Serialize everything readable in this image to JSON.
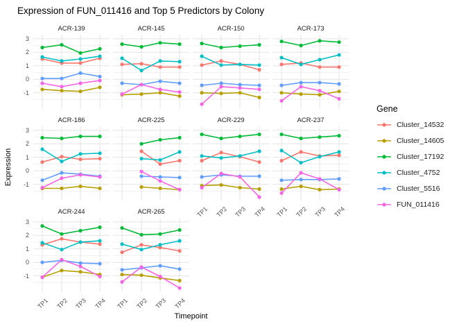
{
  "title": "Expression of FUN_011416 and Top 5 Predictors by Colony",
  "axes": {
    "x_label": "Timepoint",
    "y_label": "Expression",
    "x_tick_labels": [
      "TP1",
      "TP2",
      "TP3",
      "TP4"
    ],
    "y_tick_labels": [
      "3",
      "2",
      "1",
      "0",
      "-1"
    ],
    "y_tick_values": [
      3,
      2,
      1,
      0,
      -1
    ]
  },
  "legend": {
    "title": "Gene",
    "entries": [
      {
        "label": "Cluster_14532",
        "color": "#F8766D"
      },
      {
        "label": "Cluster_14605",
        "color": "#B79F00"
      },
      {
        "label": "Cluster_17192",
        "color": "#00BA38"
      },
      {
        "label": "Cluster_4752",
        "color": "#00BFC4"
      },
      {
        "label": "Cluster_5516",
        "color": "#619CFF"
      },
      {
        "label": "FUN_011416",
        "color": "#F564E3"
      }
    ]
  },
  "chart_data": {
    "type": "line",
    "title": "Expression of FUN_011416 and Top 5 Predictors by Colony",
    "xlabel": "Timepoint",
    "ylabel": "Expression",
    "facet_by": "Colony",
    "x": [
      "TP1",
      "TP2",
      "TP3",
      "TP4"
    ],
    "ylim": [
      -2.2,
      3.3
    ],
    "y_major_ticks": [
      -1,
      0,
      1,
      2,
      3
    ],
    "y_minor_ticks": [
      -1.5,
      -0.5,
      0.5,
      1.5,
      2.5
    ],
    "grid": true,
    "legend_position": "right",
    "legend_title": "Gene",
    "series_colors": {
      "Cluster_14532": "#F8766D",
      "Cluster_14605": "#B79F00",
      "Cluster_17192": "#00BA38",
      "Cluster_4752": "#00BFC4",
      "Cluster_5516": "#619CFF",
      "FUN_011416": "#F564E3"
    },
    "facets": [
      {
        "name": "ACR-139",
        "series": [
          {
            "name": "Cluster_14532",
            "values": [
              1.5,
              1.2,
              1.2,
              1.55
            ]
          },
          {
            "name": "Cluster_14605",
            "values": [
              -0.75,
              -0.85,
              -0.9,
              -0.6
            ]
          },
          {
            "name": "Cluster_17192",
            "values": [
              2.35,
              2.55,
              1.95,
              2.25
            ]
          },
          {
            "name": "Cluster_4752",
            "values": [
              1.65,
              1.35,
              1.5,
              1.7
            ]
          },
          {
            "name": "Cluster_5516",
            "values": [
              0.05,
              0.05,
              0.45,
              0.2
            ]
          },
          {
            "name": "FUN_011416",
            "values": [
              -0.3,
              -0.55,
              -0.3,
              -0.1
            ]
          }
        ]
      },
      {
        "name": "ACR-145",
        "series": [
          {
            "name": "Cluster_14532",
            "values": [
              1.1,
              1.15,
              0.9,
              0.9
            ]
          },
          {
            "name": "Cluster_14605",
            "values": [
              -1.15,
              -1.1,
              -1.0,
              -1.25
            ]
          },
          {
            "name": "Cluster_17192",
            "values": [
              2.6,
              2.4,
              2.7,
              2.6
            ]
          },
          {
            "name": "Cluster_4752",
            "values": [
              1.55,
              0.65,
              1.35,
              1.3
            ]
          },
          {
            "name": "Cluster_5516",
            "values": [
              -0.3,
              -0.4,
              -0.15,
              -0.3
            ]
          },
          {
            "name": "FUN_011416",
            "values": [
              -1.1,
              -0.4,
              -0.75,
              -0.95
            ]
          }
        ]
      },
      {
        "name": "ACR-150",
        "series": [
          {
            "name": "Cluster_14532",
            "values": [
              1.05,
              1.35,
              1.1,
              0.7
            ]
          },
          {
            "name": "Cluster_14605",
            "values": [
              -1.0,
              -1.05,
              -1.0,
              -1.35
            ]
          },
          {
            "name": "Cluster_17192",
            "values": [
              2.65,
              2.35,
              2.45,
              2.55
            ]
          },
          {
            "name": "Cluster_4752",
            "values": [
              1.7,
              1.05,
              1.1,
              1.05
            ]
          },
          {
            "name": "Cluster_5516",
            "values": [
              -0.45,
              -0.3,
              -0.4,
              -0.45
            ]
          },
          {
            "name": "FUN_011416",
            "values": [
              -1.85,
              -0.55,
              -0.65,
              -0.75
            ]
          }
        ]
      },
      {
        "name": "ACR-173",
        "series": [
          {
            "name": "Cluster_14532",
            "values": [
              1.1,
              1.2,
              0.9,
              0.9
            ]
          },
          {
            "name": "Cluster_14605",
            "values": [
              -1.0,
              -1.1,
              -1.15,
              -0.9
            ]
          },
          {
            "name": "Cluster_17192",
            "values": [
              2.8,
              2.5,
              2.85,
              2.75
            ]
          },
          {
            "name": "Cluster_4752",
            "values": [
              1.6,
              1.1,
              1.45,
              1.8
            ]
          },
          {
            "name": "Cluster_5516",
            "values": [
              -0.45,
              -0.25,
              -0.25,
              -0.35
            ]
          },
          {
            "name": "FUN_011416",
            "values": [
              -1.6,
              -0.55,
              -0.85,
              -1.45
            ]
          }
        ]
      },
      {
        "name": "ACR-186",
        "series": [
          {
            "name": "Cluster_14532",
            "values": [
              0.65,
              1.05,
              0.85,
              0.9
            ]
          },
          {
            "name": "Cluster_14605",
            "values": [
              -1.3,
              -1.3,
              -1.15,
              -1.3
            ]
          },
          {
            "name": "Cluster_17192",
            "values": [
              2.45,
              2.4,
              2.55,
              2.55
            ]
          },
          {
            "name": "Cluster_4752",
            "values": [
              1.6,
              0.7,
              1.25,
              1.3
            ]
          },
          {
            "name": "Cluster_5516",
            "values": [
              -0.7,
              -0.15,
              -0.25,
              -0.4
            ]
          },
          {
            "name": "FUN_011416",
            "values": [
              -1.25,
              -0.55,
              -0.3,
              -0.45
            ]
          }
        ]
      },
      {
        "name": "ACR-225",
        "series": [
          {
            "name": "Cluster_14532",
            "values": [
              null,
              1.45,
              0.5,
              0.75
            ]
          },
          {
            "name": "Cluster_14605",
            "values": [
              null,
              -1.2,
              -1.3,
              -1.4
            ]
          },
          {
            "name": "Cluster_17192",
            "values": [
              null,
              2.0,
              2.3,
              2.45
            ]
          },
          {
            "name": "Cluster_4752",
            "values": [
              null,
              0.9,
              0.8,
              1.4
            ]
          },
          {
            "name": "Cluster_5516",
            "values": [
              null,
              -0.4,
              -0.45,
              -0.5
            ]
          },
          {
            "name": "FUN_011416",
            "values": [
              null,
              -0.05,
              -0.75,
              -1.4
            ]
          }
        ]
      },
      {
        "name": "ACR-229",
        "series": [
          {
            "name": "Cluster_14532",
            "values": [
              0.75,
              1.35,
              1.05,
              0.65
            ]
          },
          {
            "name": "Cluster_14605",
            "values": [
              -1.1,
              -1.05,
              -1.25,
              -1.35
            ]
          },
          {
            "name": "Cluster_17192",
            "values": [
              2.7,
              2.4,
              2.55,
              2.7
            ]
          },
          {
            "name": "Cluster_4752",
            "values": [
              1.1,
              0.95,
              1.1,
              1.45
            ]
          },
          {
            "name": "Cluster_5516",
            "values": [
              -0.45,
              -0.3,
              -0.4,
              -0.4
            ]
          },
          {
            "name": "FUN_011416",
            "values": [
              -1.25,
              -0.2,
              -0.45,
              -1.95
            ]
          }
        ]
      },
      {
        "name": "ACR-237",
        "series": [
          {
            "name": "Cluster_14532",
            "values": [
              0.75,
              1.4,
              1.1,
              1.15
            ]
          },
          {
            "name": "Cluster_14605",
            "values": [
              -1.35,
              -1.15,
              -1.4,
              -1.35
            ]
          },
          {
            "name": "Cluster_17192",
            "values": [
              2.7,
              2.4,
              2.5,
              2.6
            ]
          },
          {
            "name": "Cluster_4752",
            "values": [
              1.5,
              0.6,
              1.05,
              1.4
            ]
          },
          {
            "name": "Cluster_5516",
            "values": [
              -0.7,
              -0.65,
              -0.65,
              -0.6
            ]
          },
          {
            "name": "FUN_011416",
            "values": [
              -1.65,
              -0.15,
              -0.6,
              -1.4
            ]
          }
        ]
      },
      {
        "name": "ACR-244",
        "series": [
          {
            "name": "Cluster_14532",
            "values": [
              1.3,
              1.75,
              1.5,
              1.35
            ]
          },
          {
            "name": "Cluster_14605",
            "values": [
              -1.1,
              -0.6,
              -0.7,
              -0.9
            ]
          },
          {
            "name": "Cluster_17192",
            "values": [
              2.7,
              2.1,
              2.35,
              2.6
            ]
          },
          {
            "name": "Cluster_4752",
            "values": [
              1.45,
              0.95,
              1.5,
              1.6
            ]
          },
          {
            "name": "Cluster_5516",
            "values": [
              0.0,
              0.15,
              -0.05,
              -0.1
            ]
          },
          {
            "name": "FUN_011416",
            "values": [
              -1.1,
              0.2,
              -0.3,
              -1.05
            ]
          }
        ]
      },
      {
        "name": "ACR-265",
        "series": [
          {
            "name": "Cluster_14532",
            "values": [
              0.75,
              1.3,
              1.1,
              0.85
            ]
          },
          {
            "name": "Cluster_14605",
            "values": [
              -0.9,
              -0.95,
              -1.15,
              -1.35
            ]
          },
          {
            "name": "Cluster_17192",
            "values": [
              2.55,
              2.05,
              2.1,
              2.4
            ]
          },
          {
            "name": "Cluster_4752",
            "values": [
              1.35,
              0.95,
              1.3,
              1.6
            ]
          },
          {
            "name": "Cluster_5516",
            "values": [
              -0.55,
              -0.4,
              -0.25,
              -0.5
            ]
          },
          {
            "name": "FUN_011416",
            "values": [
              -1.45,
              -0.35,
              -1.05,
              -1.9
            ]
          }
        ]
      }
    ]
  }
}
